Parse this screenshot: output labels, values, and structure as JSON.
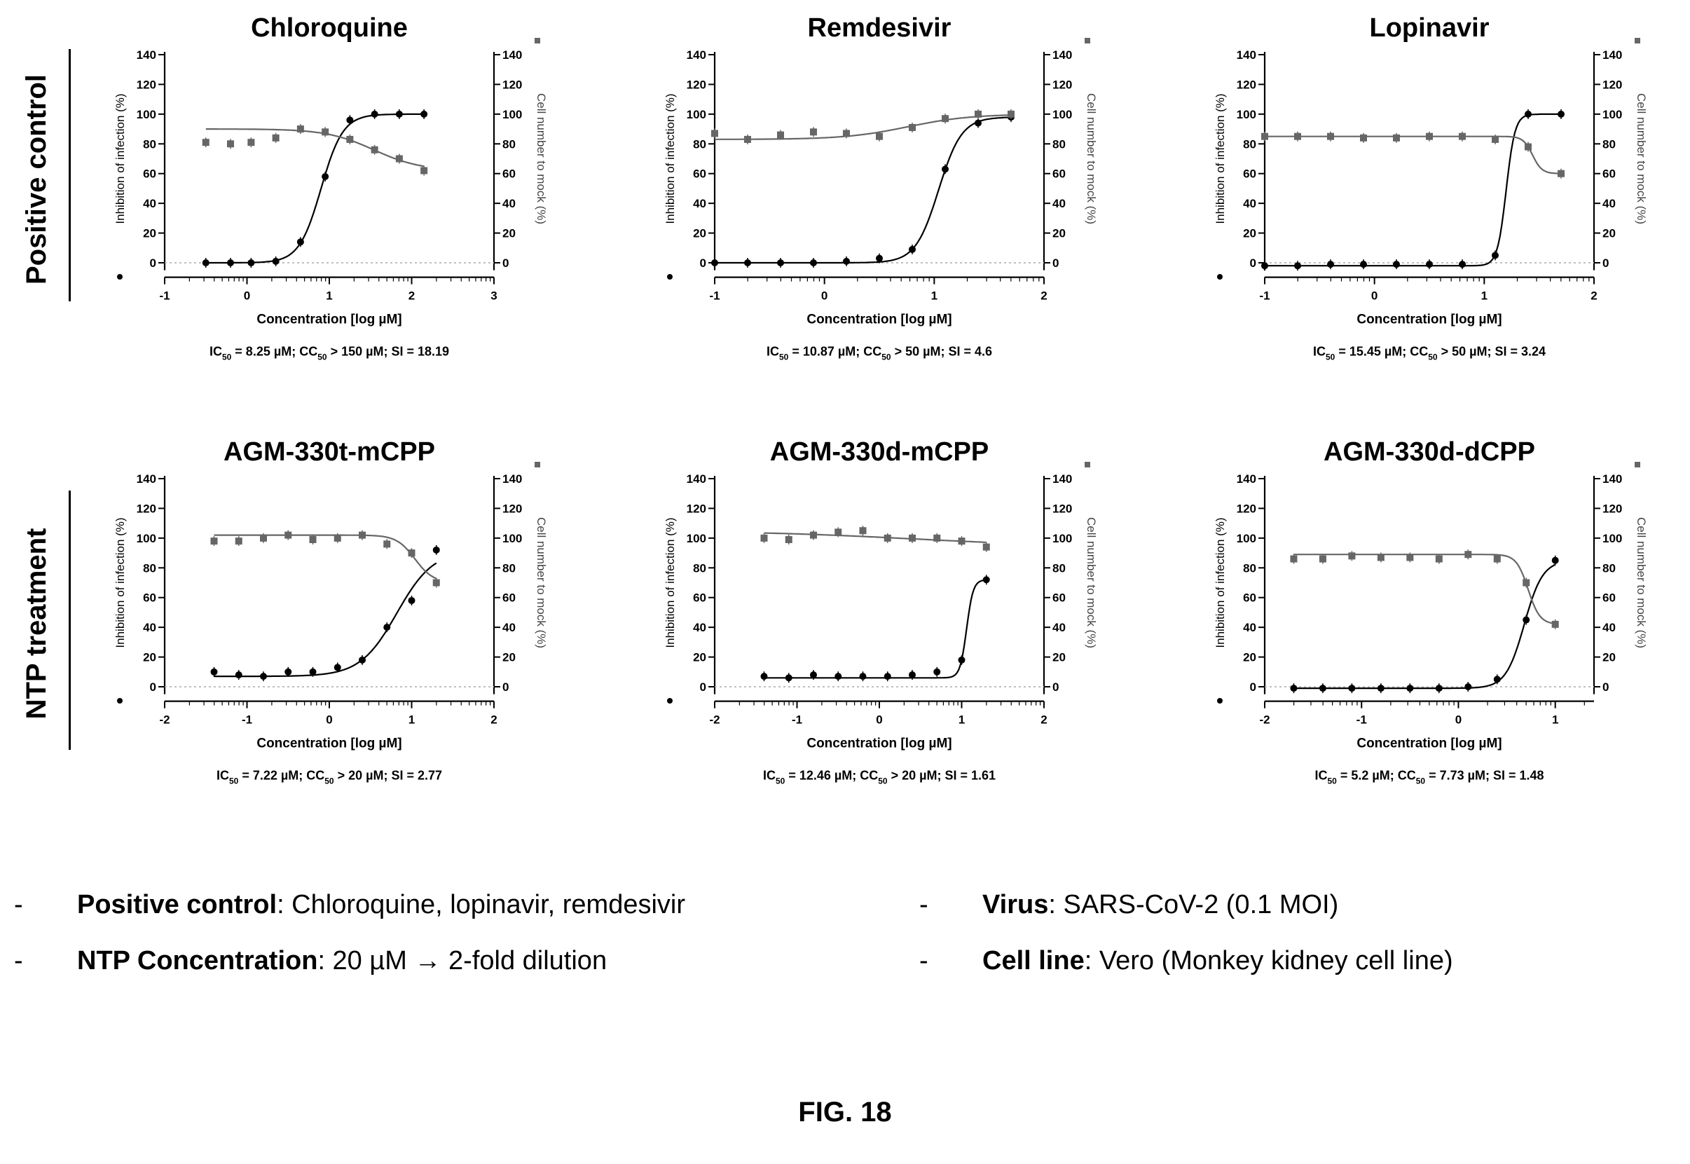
{
  "groups": [
    {
      "label": "Positive control"
    },
    {
      "label": "NTP treatment"
    }
  ],
  "axis_text": {
    "xlabel": "Concentration [log µM]",
    "ylabel_left": "Inhibition of infection (%)",
    "ylabel_right": "Cell number to mock (%)"
  },
  "colors": {
    "inhibition": "#000000",
    "cell": "#666666",
    "baseline": "#aaaaaa"
  },
  "chart_data": [
    {
      "type": "scatter",
      "title": "Chloroquine",
      "xlim": [
        -1,
        3
      ],
      "xticks": [
        -1,
        0,
        1,
        2,
        3
      ],
      "ylim": [
        0,
        140
      ],
      "yticks": [
        0,
        20,
        40,
        60,
        80,
        100,
        120,
        140
      ],
      "xlabel": "Concentration [log µM]",
      "ylabel_left": "Inhibition of infection (%)",
      "ylabel_right": "Cell number to mock (%)",
      "caption": {
        "ic": "8.25 µM",
        "cc_rel": ">",
        "cc": "150 µM",
        "si": "18.19"
      },
      "series": [
        {
          "name": "Inhibition of infection (%)",
          "x": [
            -0.5,
            -0.2,
            0.05,
            0.35,
            0.65,
            0.95,
            1.25,
            1.55,
            1.85,
            2.15
          ],
          "y": [
            0,
            0,
            0,
            1,
            14,
            58,
            96,
            100,
            100,
            100
          ]
        },
        {
          "name": "Cell number to mock (%)",
          "x": [
            -0.5,
            -0.2,
            0.05,
            0.35,
            0.65,
            0.95,
            1.25,
            1.55,
            1.85,
            2.15
          ],
          "y": [
            81,
            80,
            81,
            84,
            90,
            88,
            83,
            76,
            70,
            62
          ]
        }
      ]
    },
    {
      "type": "scatter",
      "title": "Remdesivir",
      "xlim": [
        -1,
        2
      ],
      "xticks": [
        -1,
        0,
        1,
        2
      ],
      "ylim": [
        0,
        140
      ],
      "yticks": [
        0,
        20,
        40,
        60,
        80,
        100,
        120,
        140
      ],
      "xlabel": "Concentration [log µM]",
      "ylabel_left": "Inhibition of infection (%)",
      "ylabel_right": "Cell number to mock (%)",
      "caption": {
        "ic": "10.87 µM",
        "cc_rel": ">",
        "cc": "50 µM",
        "si": "4.6"
      },
      "series": [
        {
          "name": "Inhibition of infection (%)",
          "x": [
            -1.0,
            -0.7,
            -0.4,
            -0.1,
            0.2,
            0.5,
            0.8,
            1.1,
            1.4,
            1.7
          ],
          "y": [
            0,
            0,
            0,
            0,
            1,
            3,
            9,
            63,
            94,
            98
          ]
        },
        {
          "name": "Cell number to mock (%)",
          "x": [
            -1.0,
            -0.7,
            -0.4,
            -0.1,
            0.2,
            0.5,
            0.8,
            1.1,
            1.4,
            1.7
          ],
          "y": [
            87,
            83,
            86,
            88,
            87,
            85,
            91,
            97,
            100,
            100
          ]
        }
      ]
    },
    {
      "type": "scatter",
      "title": "Lopinavir",
      "xlim": [
        -1,
        2
      ],
      "xticks": [
        -1,
        0,
        1,
        2
      ],
      "ylim": [
        0,
        140
      ],
      "yticks": [
        0,
        20,
        40,
        60,
        80,
        100,
        120,
        140
      ],
      "xlabel": "Concentration [log µM]",
      "ylabel_left": "Inhibition of infection (%)",
      "ylabel_right": "Cell number to mock (%)",
      "caption": {
        "ic": "15.45 µM",
        "cc_rel": ">",
        "cc": "50 µM",
        "si": "3.24"
      },
      "series": [
        {
          "name": "Inhibition of infection (%)",
          "x": [
            -1.0,
            -0.7,
            -0.4,
            -0.1,
            0.2,
            0.5,
            0.8,
            1.1,
            1.4,
            1.7
          ],
          "y": [
            -2,
            -2,
            -1,
            -1,
            -1,
            -1,
            -1,
            5,
            100,
            100
          ]
        },
        {
          "name": "Cell number to mock (%)",
          "x": [
            -1.0,
            -0.7,
            -0.4,
            -0.1,
            0.2,
            0.5,
            0.8,
            1.1,
            1.4,
            1.7
          ],
          "y": [
            85,
            85,
            85,
            84,
            84,
            85,
            85,
            83,
            78,
            60
          ]
        }
      ]
    },
    {
      "type": "scatter",
      "title": "AGM-330t-mCPP",
      "xlim": [
        -2,
        2
      ],
      "xticks": [
        -2,
        -1,
        0,
        1,
        2
      ],
      "ylim": [
        0,
        140
      ],
      "yticks": [
        0,
        20,
        40,
        60,
        80,
        100,
        120,
        140
      ],
      "xlabel": "Concentration [log µM]",
      "ylabel_left": "Inhibition of infection (%)",
      "ylabel_right": "Cell number to mock (%)",
      "caption": {
        "ic": "7.22 µM",
        "cc_rel": ">",
        "cc": "20 µM",
        "si": "2.77"
      },
      "series": [
        {
          "name": "Inhibition of infection (%)",
          "x": [
            -1.4,
            -1.1,
            -0.8,
            -0.5,
            -0.2,
            0.1,
            0.4,
            0.7,
            1.0,
            1.3
          ],
          "y": [
            10,
            8,
            7,
            10,
            10,
            13,
            18,
            40,
            58,
            92
          ]
        },
        {
          "name": "Cell number to mock (%)",
          "x": [
            -1.4,
            -1.1,
            -0.8,
            -0.5,
            -0.2,
            0.1,
            0.4,
            0.7,
            1.0,
            1.3
          ],
          "y": [
            98,
            98,
            100,
            102,
            99,
            100,
            102,
            96,
            90,
            70
          ]
        }
      ]
    },
    {
      "type": "scatter",
      "title": "AGM-330d-mCPP",
      "xlim": [
        -2,
        2
      ],
      "xticks": [
        -2,
        -1,
        0,
        1,
        2
      ],
      "ylim": [
        0,
        140
      ],
      "yticks": [
        0,
        20,
        40,
        60,
        80,
        100,
        120,
        140
      ],
      "xlabel": "Concentration [log µM]",
      "ylabel_left": "Inhibition of infection (%)",
      "ylabel_right": "Cell number to mock (%)",
      "caption": {
        "ic": "12.46 µM",
        "cc_rel": ">",
        "cc": "20 µM",
        "si": "1.61"
      },
      "series": [
        {
          "name": "Inhibition of infection (%)",
          "x": [
            -1.4,
            -1.1,
            -0.8,
            -0.5,
            -0.2,
            0.1,
            0.4,
            0.7,
            1.0,
            1.3
          ],
          "y": [
            7,
            6,
            8,
            7,
            7,
            7,
            8,
            10,
            18,
            72
          ]
        },
        {
          "name": "Cell number to mock (%)",
          "x": [
            -1.4,
            -1.1,
            -0.8,
            -0.5,
            -0.2,
            0.1,
            0.4,
            0.7,
            1.0,
            1.3
          ],
          "y": [
            100,
            99,
            102,
            104,
            105,
            100,
            100,
            100,
            98,
            94
          ]
        }
      ]
    },
    {
      "type": "scatter",
      "title": "AGM-330d-dCPP",
      "xlim": [
        -2,
        1.4
      ],
      "xticks": [
        -2,
        -1,
        0,
        1
      ],
      "ylim": [
        0,
        140
      ],
      "yticks": [
        0,
        20,
        40,
        60,
        80,
        100,
        120,
        140
      ],
      "xlabel": "Concentration [log µM]",
      "ylabel_left": "Inhibition of infection (%)",
      "ylabel_right": "Cell number to mock (%)",
      "caption": {
        "ic": "5.2 µM",
        "cc_rel": "=",
        "cc": "7.73 µM",
        "si": "1.48"
      },
      "series": [
        {
          "name": "Inhibition of infection (%)",
          "x": [
            -1.7,
            -1.4,
            -1.1,
            -0.8,
            -0.5,
            -0.2,
            0.1,
            0.4,
            0.7,
            1.0
          ],
          "y": [
            -1,
            -1,
            -1,
            -1,
            -1,
            -1,
            0,
            5,
            45,
            85
          ]
        },
        {
          "name": "Cell number to mock (%)",
          "x": [
            -1.7,
            -1.4,
            -1.1,
            -0.8,
            -0.5,
            -0.2,
            0.1,
            0.4,
            0.7,
            1.0
          ],
          "y": [
            86,
            86,
            88,
            87,
            87,
            86,
            89,
            86,
            70,
            42
          ]
        }
      ]
    }
  ],
  "notes": [
    {
      "bold": "Positive control",
      "rest": ": Chloroquine, lopinavir, remdesivir"
    },
    {
      "bold": "NTP Concentration",
      "rest": ": 20 µM → 2-fold dilution"
    },
    {
      "bold": "Virus",
      "rest": ": SARS-CoV-2 (0.1 MOI)"
    },
    {
      "bold": "Cell line",
      "rest": ": Vero (Monkey kidney cell line)"
    }
  ],
  "figure_label": "FIG. 18"
}
